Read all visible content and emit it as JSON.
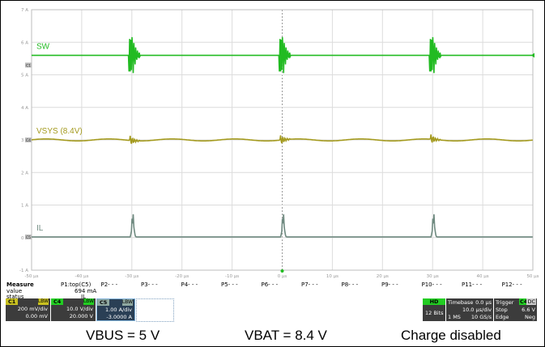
{
  "chart_data": {
    "type": "line",
    "x_unit": "µs",
    "y_unit": "A",
    "xlim": [
      -50,
      50
    ],
    "ylim": [
      -1,
      7
    ],
    "x_ticks": [
      "-50 µs",
      "-40 µs",
      "-30 µs",
      "-20 µs",
      "-10 µs",
      "0 µs",
      "10 µs",
      "20 µs",
      "30 µs",
      "40 µs",
      "50 µs"
    ],
    "y_ticks": [
      "-1 A",
      "0 A",
      "1 A",
      "2 A",
      "3 A",
      "4 A",
      "5 A",
      "6 A",
      "7 A"
    ],
    "grid": true,
    "series": [
      {
        "name": "SW",
        "color": "#22bb22",
        "baseline": 5.6,
        "spikes_us": [
          -30,
          0,
          30
        ],
        "shape": "switching"
      },
      {
        "name": "VSYS (8.4V)",
        "color": "#a49a1e",
        "baseline": 3.0,
        "spikes_us": [
          -30,
          0,
          30
        ],
        "shape": "small"
      },
      {
        "name": "IL",
        "color": "#6f8a80",
        "baseline": 0.02,
        "spikes_us": [
          -30,
          0,
          30
        ],
        "shape": "pulse"
      }
    ],
    "channel_markers": [
      "C1",
      "C4",
      "C5"
    ]
  },
  "measure": {
    "header": "Measure",
    "row_labels": [
      "value",
      "status"
    ],
    "params": [
      "P1:top(C5)",
      "P2- - -",
      "P3- - -",
      "P4- - -",
      "P5- - -",
      "P6- - -",
      "P7- - -",
      "P8- - -",
      "P9- - -",
      "P10- - -",
      "P11- - -",
      "P12- - -"
    ],
    "p1_value": "694 mA",
    "p1_status": "JL"
  },
  "channels": [
    {
      "name": "C1",
      "flags": "LBW",
      "scale": "200 mV/div",
      "offset": "0.00 mV",
      "color": "#c8c020"
    },
    {
      "name": "C4",
      "flags": "LBW",
      "scale": "10.0 V/div",
      "offset": "20.000 V",
      "color": "#22cc22"
    },
    {
      "name": "C5",
      "flags": "LBW",
      "scale": "1.00 A/div",
      "offset": "-3.0000 A",
      "color": "#8fa8a0"
    }
  ],
  "right_panel": {
    "hd": "HD",
    "bits": "12 Bits",
    "timebase_label": "Timebase",
    "timebase_val": "0.0 µs",
    "timebase_div": "10.0 µs/div",
    "samples": "1 MS",
    "rate": "10 GS/s",
    "trigger_label": "Trigger",
    "trigger_ch": "C4",
    "trigger_mode": "DC",
    "stop": "Stop",
    "trig_level": "6.6 V",
    "edge": "Edge",
    "slope": "Neg"
  },
  "captions": [
    "VBUS = 5 V",
    "VBAT = 8.4 V",
    "Charge disabled"
  ]
}
